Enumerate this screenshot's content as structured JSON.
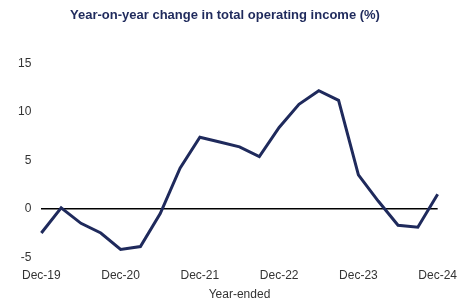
{
  "chart_data": {
    "type": "line",
    "title": "Year-on-year change in total operating income (%)",
    "x_label": "Year-ended",
    "categories": [
      "Dec-19",
      null,
      null,
      null,
      "Dec-20",
      null,
      null,
      null,
      "Dec-21",
      null,
      null,
      null,
      "Dec-22",
      null,
      null,
      null,
      "Dec-23",
      null,
      null,
      null,
      "Dec-24"
    ],
    "values": [
      -2.5,
      0.1,
      -1.5,
      -2.5,
      -4.2,
      -3.9,
      -0.5,
      4.2,
      7.4,
      6.9,
      6.4,
      5.4,
      8.4,
      10.8,
      12.2,
      11.2,
      3.5,
      0.8,
      -1.7,
      -1.9,
      1.5
    ],
    "color": "#1f2a5c",
    "ylim": [
      -5,
      15
    ],
    "yticks": [
      -5,
      0,
      5,
      10,
      15
    ],
    "grid": false,
    "marker": "none",
    "line_style": "solid"
  }
}
